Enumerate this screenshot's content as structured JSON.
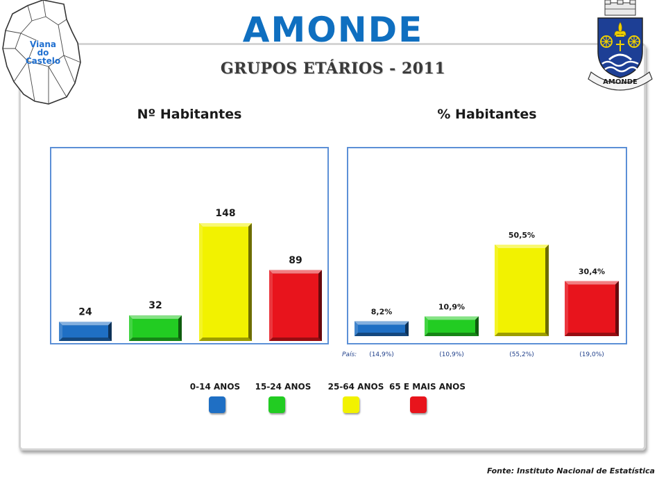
{
  "header": {
    "title": "AMONDE",
    "subtitle": "GRUPOS ETÁRIOS - 2011",
    "map_text": [
      "Viana",
      "do",
      "Castelo"
    ],
    "coat_text": "AMONDE"
  },
  "legend": {
    "items": [
      {
        "label": "0-14 ANOS",
        "color": "#1f6fc4"
      },
      {
        "label": "15-24 ANOS",
        "color": "#22cc22"
      },
      {
        "label": "25-64 ANOS",
        "color": "#f2f200"
      },
      {
        "label": "65 E MAIS ANOS",
        "color": "#e8141c"
      }
    ]
  },
  "pais": {
    "label": "País:",
    "values": [
      "(14,9%)",
      "(10,9%)",
      "(55,2%)",
      "(19,0%)"
    ]
  },
  "source": "Fonte: Instituto Nacional de Estatística",
  "chart_data": [
    {
      "type": "bar",
      "title": "Nº Habitantes",
      "categories": [
        "0-14 ANOS",
        "15-24 ANOS",
        "25-64 ANOS",
        "65 E MAIS ANOS"
      ],
      "values": [
        24,
        32,
        148,
        89
      ],
      "data_labels": [
        "24",
        "32",
        "148",
        "89"
      ],
      "colors": [
        "#1f6fc4",
        "#22cc22",
        "#f2f200",
        "#e8141c"
      ],
      "ylim": [
        0,
        160
      ],
      "grid": false
    },
    {
      "type": "bar",
      "title": "% Habitantes",
      "categories": [
        "0-14 ANOS",
        "15-24 ANOS",
        "25-64 ANOS",
        "65 E MAIS ANOS"
      ],
      "values": [
        8.2,
        10.9,
        50.5,
        30.4
      ],
      "data_labels": [
        "8,2%",
        "10,9%",
        "50,5%",
        "30,4%"
      ],
      "colors": [
        "#1f6fc4",
        "#22cc22",
        "#f2f200",
        "#e8141c"
      ],
      "ylim": [
        0,
        60
      ],
      "grid": false
    }
  ]
}
